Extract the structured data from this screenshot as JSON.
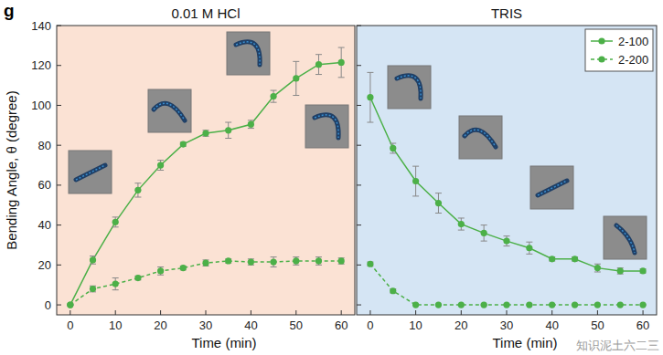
{
  "chart_data": [
    {
      "type": "line",
      "title": "0.01 M HCl",
      "x_label": "Time (min)",
      "y_label": "Bending Angle, θ (degree)",
      "annotations": [
        "g"
      ],
      "x": [
        0,
        5,
        10,
        15,
        20,
        25,
        30,
        35,
        40,
        45,
        50,
        55,
        60
      ],
      "series": [
        {
          "name": "2-100",
          "color": "#4cb048",
          "marker": "circle",
          "line_style": "solid",
          "values": [
            0,
            22.5,
            41.5,
            57.5,
            70,
            80.5,
            86,
            87.5,
            90.5,
            104.5,
            113.5,
            120.5,
            121.5
          ],
          "errors": [
            0,
            2,
            2.5,
            3.5,
            2.5,
            1,
            1.5,
            4,
            2,
            3,
            8.5,
            5,
            7.5
          ]
        },
        {
          "name": "2-200",
          "color": "#4cb048",
          "marker": "circle",
          "line_style": "dashed",
          "values": [
            0,
            8,
            10.5,
            13.5,
            17,
            18.5,
            21,
            22,
            21.5,
            21.5,
            22,
            22,
            22
          ],
          "errors": [
            0,
            1.5,
            3,
            1,
            2,
            1,
            1.5,
            1,
            1.5,
            2.5,
            2,
            2,
            1.5
          ]
        }
      ],
      "xlim": [
        -3,
        63
      ],
      "xticks": [
        0,
        10,
        20,
        30,
        40,
        50,
        60
      ],
      "ylim": [
        -5,
        140
      ],
      "yticks": [
        0,
        20,
        40,
        60,
        80,
        100,
        120,
        140
      ],
      "legend": "none",
      "tick_labels": true,
      "grid": false
    },
    {
      "type": "line",
      "title": "TRIS",
      "x_label": "Time (min)",
      "annotations": [
        "知识泥土六二三"
      ],
      "x": [
        0,
        5,
        10,
        15,
        20,
        25,
        30,
        35,
        40,
        45,
        50,
        55,
        60
      ],
      "series": [
        {
          "name": "2-100",
          "color": "#4cb048",
          "marker": "circle",
          "line_style": "solid",
          "values": [
            104,
            78.5,
            62,
            51,
            40.5,
            36,
            32,
            28.5,
            23,
            23,
            18.5,
            17,
            17
          ],
          "errors": [
            12.5,
            2.5,
            7.5,
            5,
            3,
            4,
            2.5,
            3,
            1,
            1,
            2,
            1.5,
            1
          ]
        },
        {
          "name": "2-200",
          "color": "#4cb048",
          "marker": "circle",
          "line_style": "dashed",
          "values": [
            20.5,
            7,
            0,
            0,
            0,
            0,
            0,
            0,
            0,
            0,
            0,
            0,
            0
          ],
          "errors": [
            1,
            1,
            0,
            0,
            0,
            0,
            0,
            0,
            0,
            0,
            0,
            0,
            0
          ]
        }
      ],
      "xlim": [
        -3,
        63
      ],
      "xticks": [
        0,
        10,
        20,
        30,
        40,
        50,
        60
      ],
      "ylim": [
        -5,
        140
      ],
      "yticks": [
        0,
        20,
        40,
        60,
        80,
        100,
        120,
        140
      ],
      "legend": "upper right",
      "tick_labels": "x",
      "grid": false
    }
  ]
}
